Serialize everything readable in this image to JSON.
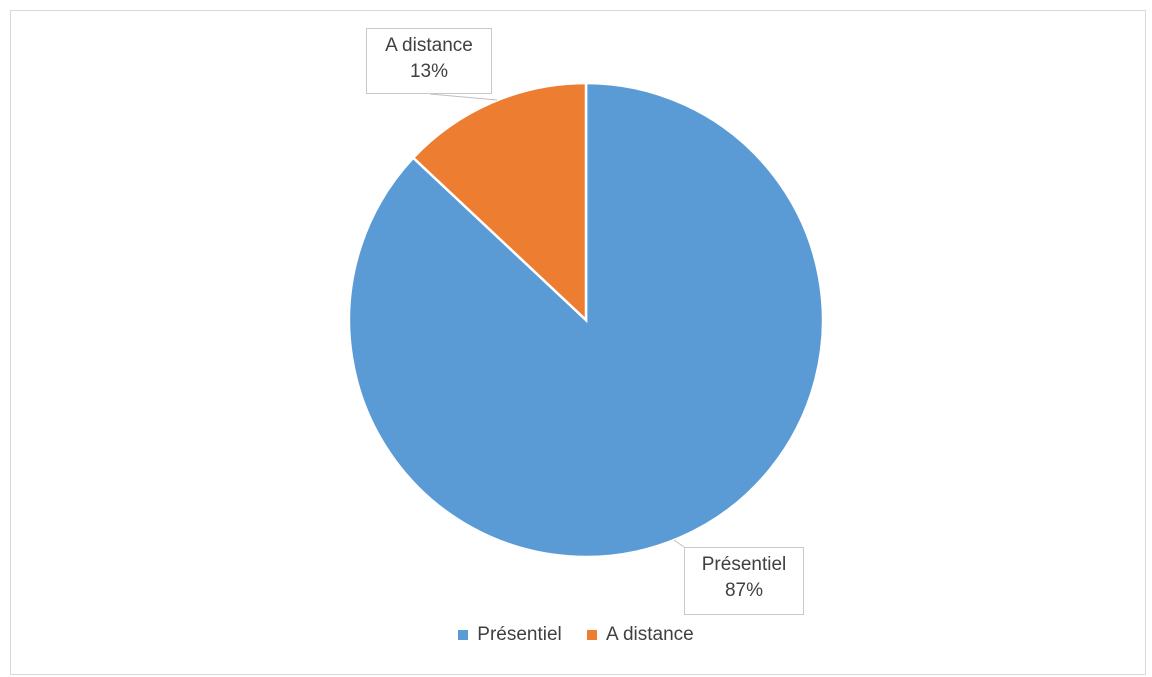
{
  "chart_data": {
    "type": "pie",
    "title": "",
    "slices": [
      {
        "label": "Présentiel",
        "value": 87,
        "display": "87%",
        "color": "#5b9bd5"
      },
      {
        "label": "A distance",
        "value": 13,
        "display": "13%",
        "color": "#ed7d31"
      }
    ],
    "legend": {
      "position": "bottom",
      "entries": [
        "Présentiel",
        "A distance"
      ]
    }
  }
}
